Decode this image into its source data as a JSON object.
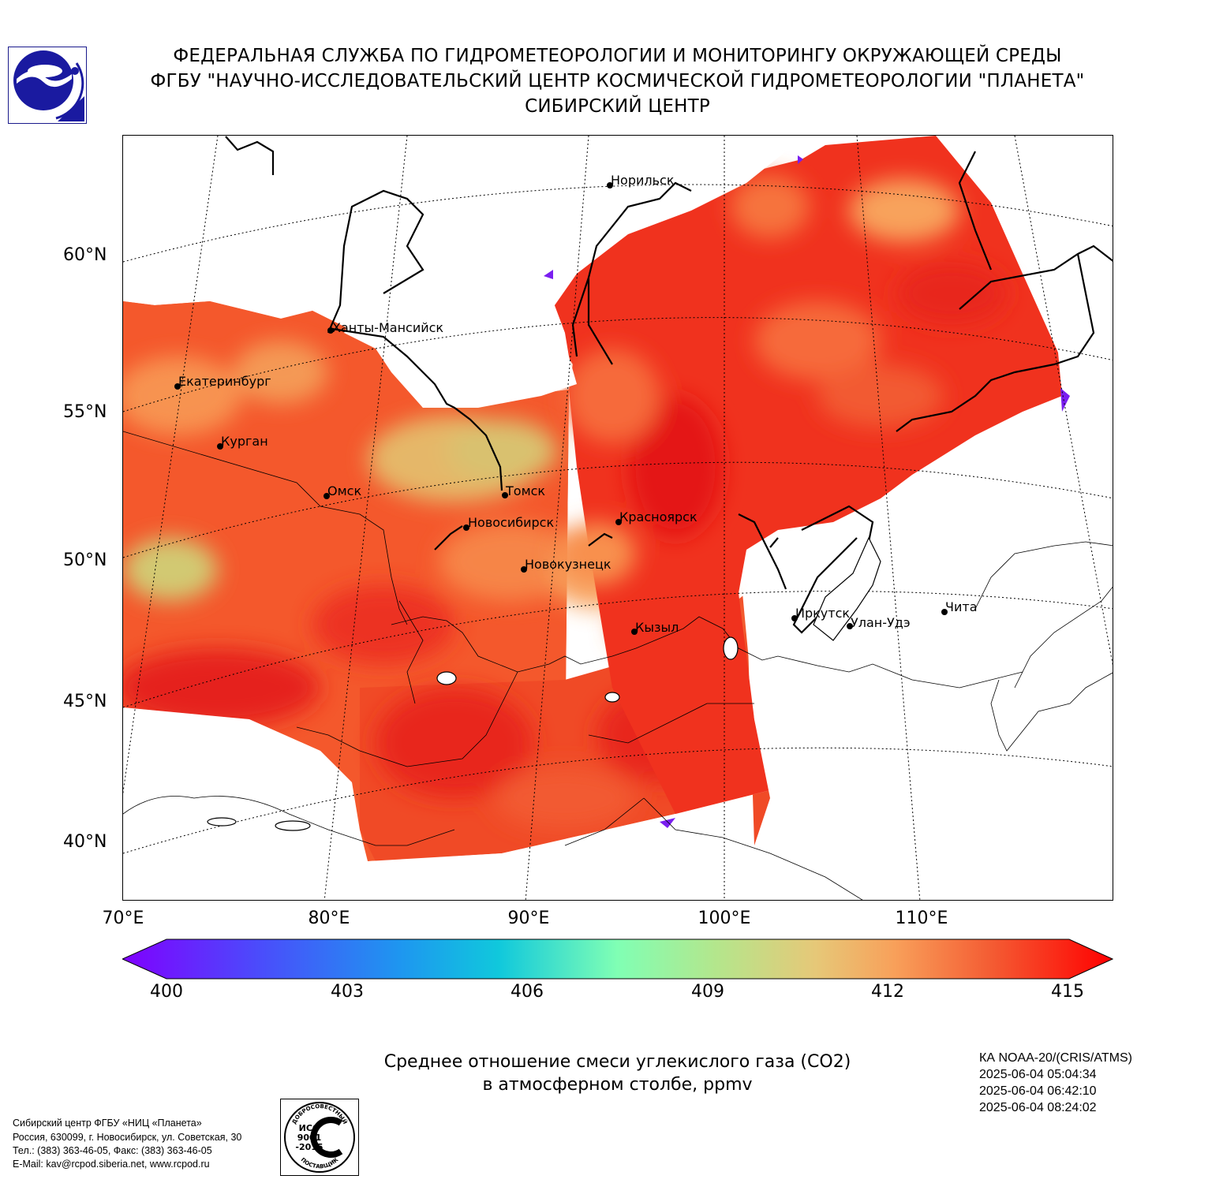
{
  "header": {
    "line1": "ФЕДЕРАЛЬНАЯ СЛУЖБА ПО ГИДРОМЕТЕОРОЛОГИИ И МОНИТОРИНГУ ОКРУЖАЮЩЕЙ СРЕДЫ",
    "line2": "ФГБУ \"НАУЧНО-ИССЛЕДОВАТЕЛЬСКИЙ ЦЕНТР КОСМИЧЕСКОЙ ГИДРОМЕТЕОРОЛОГИИ \"ПЛАНЕТА\"",
    "line3": "СИБИРСКИЙ ЦЕНТР"
  },
  "map": {
    "lat_labels": [
      "60°N",
      "55°N",
      "50°N",
      "45°N",
      "40°N"
    ],
    "lon_labels": [
      "70°E",
      "80°E",
      "90°E",
      "100°E",
      "110°E"
    ],
    "cities": [
      "Норильск",
      "Ханты-Мансийск",
      "Екатеринбург",
      "Курган",
      "Омск",
      "Томск",
      "Новосибирск",
      "Красноярск",
      "Новокузнецк",
      "Кызыл",
      "Иркутск",
      "Улан-Удэ",
      "Чита"
    ]
  },
  "colorbar": {
    "ticks": [
      "400",
      "403",
      "406",
      "409",
      "412",
      "415"
    ],
    "min": 400,
    "max": 415,
    "extend": "both",
    "colormap": "rainbow"
  },
  "caption": {
    "line1": "Среднее отношение смеси углекислого газа (CO2)",
    "line2": "в атмосферном столбе, ppmv"
  },
  "satellite": {
    "name": "КА NOAA-20/(CRIS/ATMS)",
    "times": [
      "2025-06-04 05:04:34",
      "2025-06-04 06:42:10",
      "2025-06-04 08:24:02"
    ]
  },
  "footer": {
    "org": "Сибирский центр ФГБУ «НИЦ «Планета»",
    "address": "Россия, 630099, г. Новосибирск, ул. Советская, 30",
    "phone": "Тел.: (383) 363-46-05, Факс: (383) 363-46-05",
    "email": "E-Mail: kav@rcpod.siberia.net, www.rcpod.ru"
  },
  "iso_logo": {
    "arc_top": "ДОБРОСОВЕСТНЫЙ",
    "line1": "ИСО",
    "line2": "9001",
    "line3": "-2015",
    "arc_bottom": "ПОСТАВЩИК"
  }
}
